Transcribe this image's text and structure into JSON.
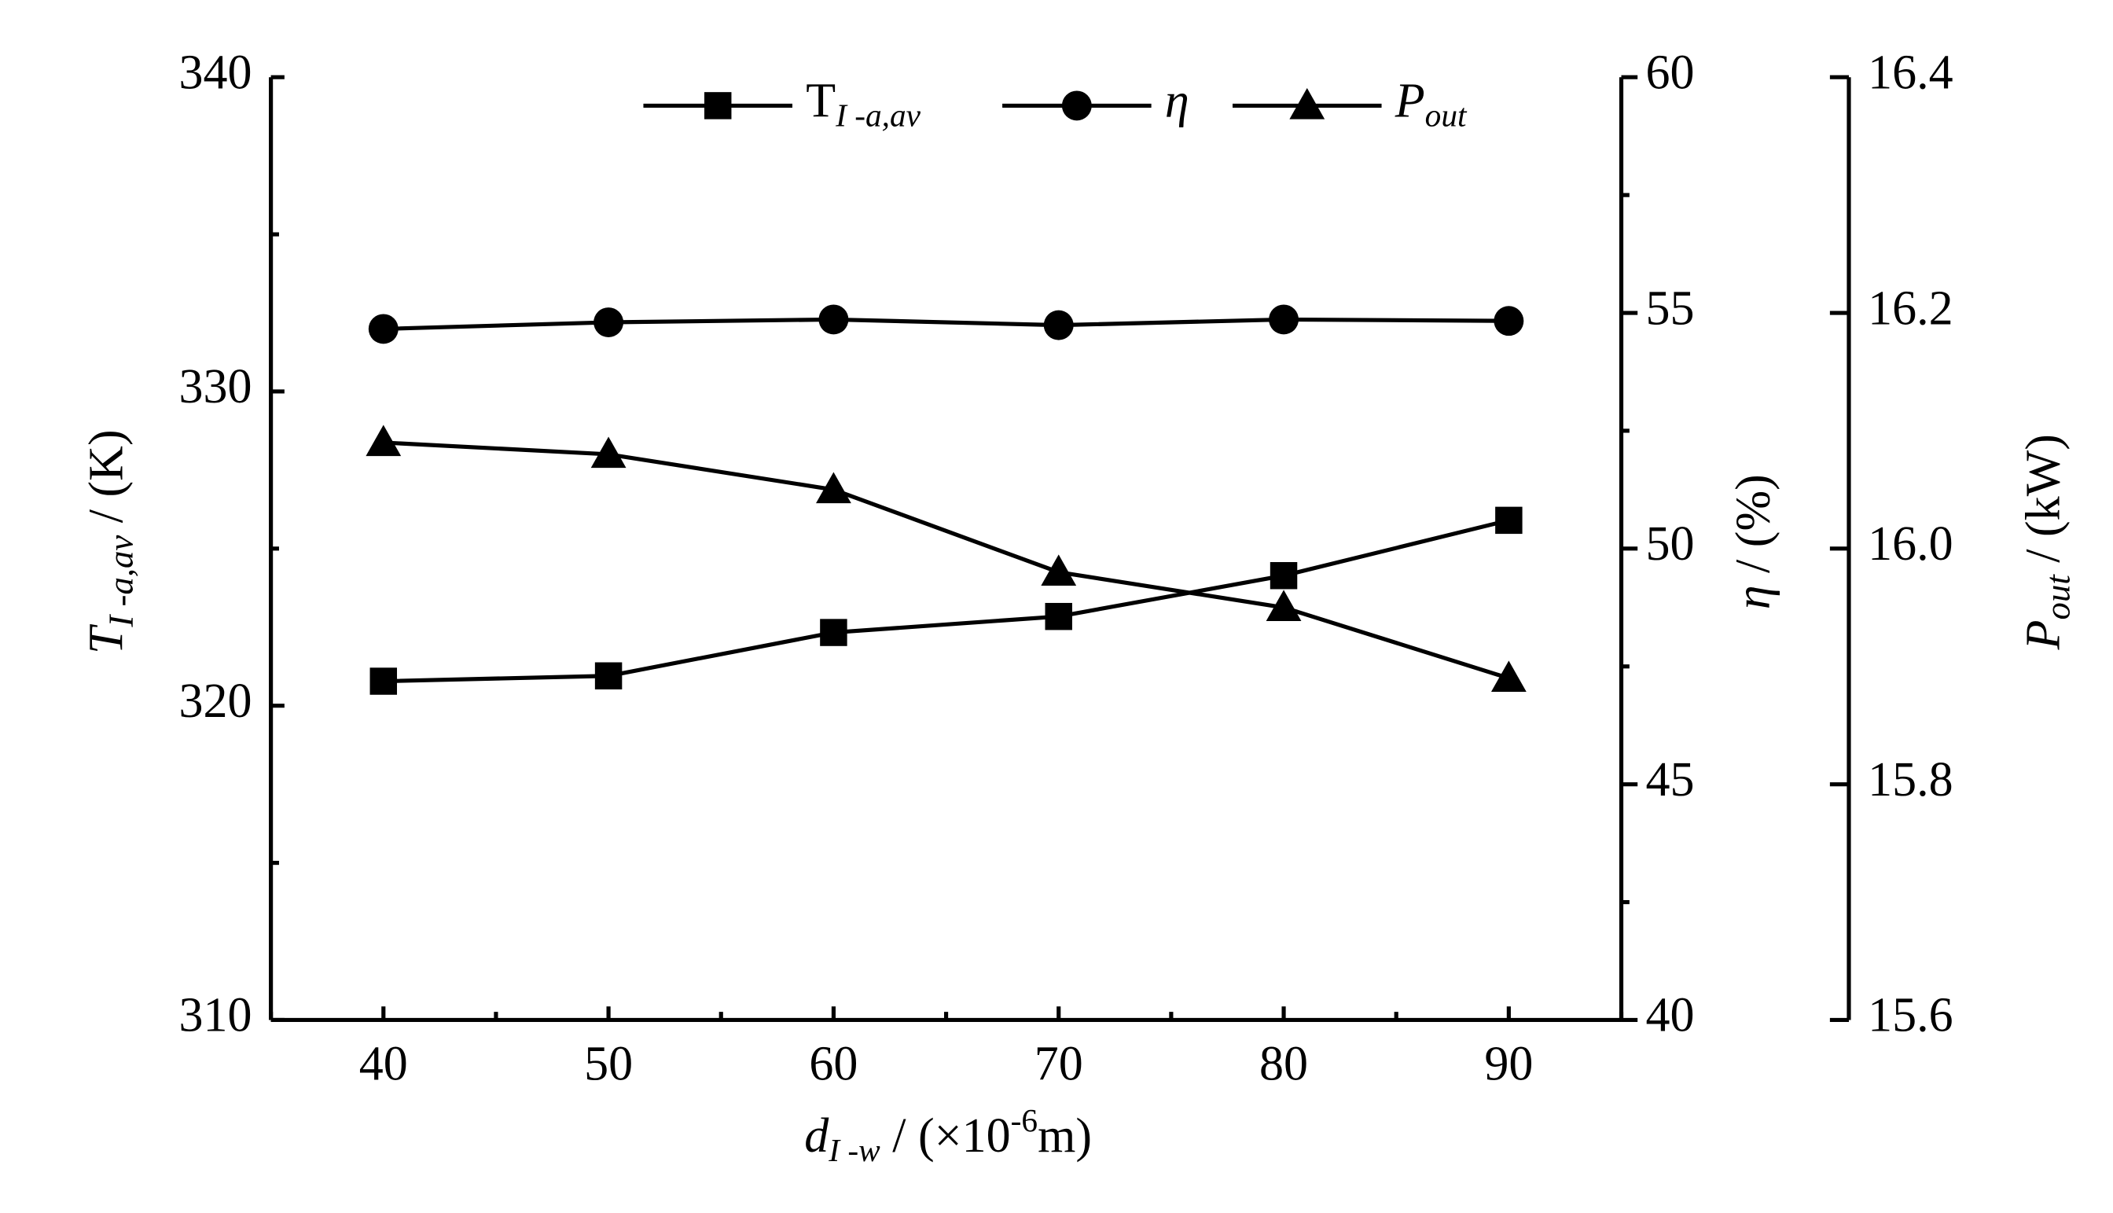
{
  "chart_data": {
    "type": "line",
    "x": [
      40,
      50,
      60,
      70,
      80,
      90
    ],
    "xlim": [
      35,
      95
    ],
    "xticks": [
      40,
      50,
      60,
      70,
      80,
      90
    ],
    "xminor": [
      35,
      45,
      55,
      65,
      75,
      85,
      95
    ],
    "xlabel": [
      "d",
      "I -w",
      " / (×10",
      "-6",
      "m)"
    ],
    "ylim": [
      310,
      340
    ],
    "yticks": [
      310,
      320,
      330,
      340
    ],
    "yminor": [
      315,
      325,
      335
    ],
    "ylabel": [
      "T",
      "I -a,av",
      " / (K)"
    ],
    "y2lim": [
      40,
      60
    ],
    "y2ticks": [
      40,
      45,
      50,
      55,
      60
    ],
    "y2minor": [
      42.5,
      47.5,
      52.5,
      57.5
    ],
    "y2label": [
      "η",
      " / (%)"
    ],
    "y3lim": [
      15.6,
      16.4
    ],
    "y3ticks": [
      15.6,
      15.8,
      16.0,
      16.2,
      16.4
    ],
    "y3label": [
      "P",
      "out",
      " / (kW)"
    ],
    "series": [
      {
        "name": [
          "T",
          "I -a,av"
        ],
        "marker": "square",
        "color": "#000000",
        "values": [
          320.78,
          320.95,
          322.33,
          322.84,
          324.14,
          325.9
        ]
      },
      {
        "name": [
          "η"
        ],
        "marker": "circle",
        "color": "#000000",
        "axis": "y2",
        "values": [
          54.66,
          54.8,
          54.86,
          54.74,
          54.86,
          54.83
        ]
      },
      {
        "name": [
          "P",
          "out"
        ],
        "marker": "triangle",
        "color": "#000000",
        "axis": "y3",
        "values": [
          16.09,
          16.08,
          16.05,
          15.98,
          15.95,
          15.89
        ]
      }
    ]
  }
}
